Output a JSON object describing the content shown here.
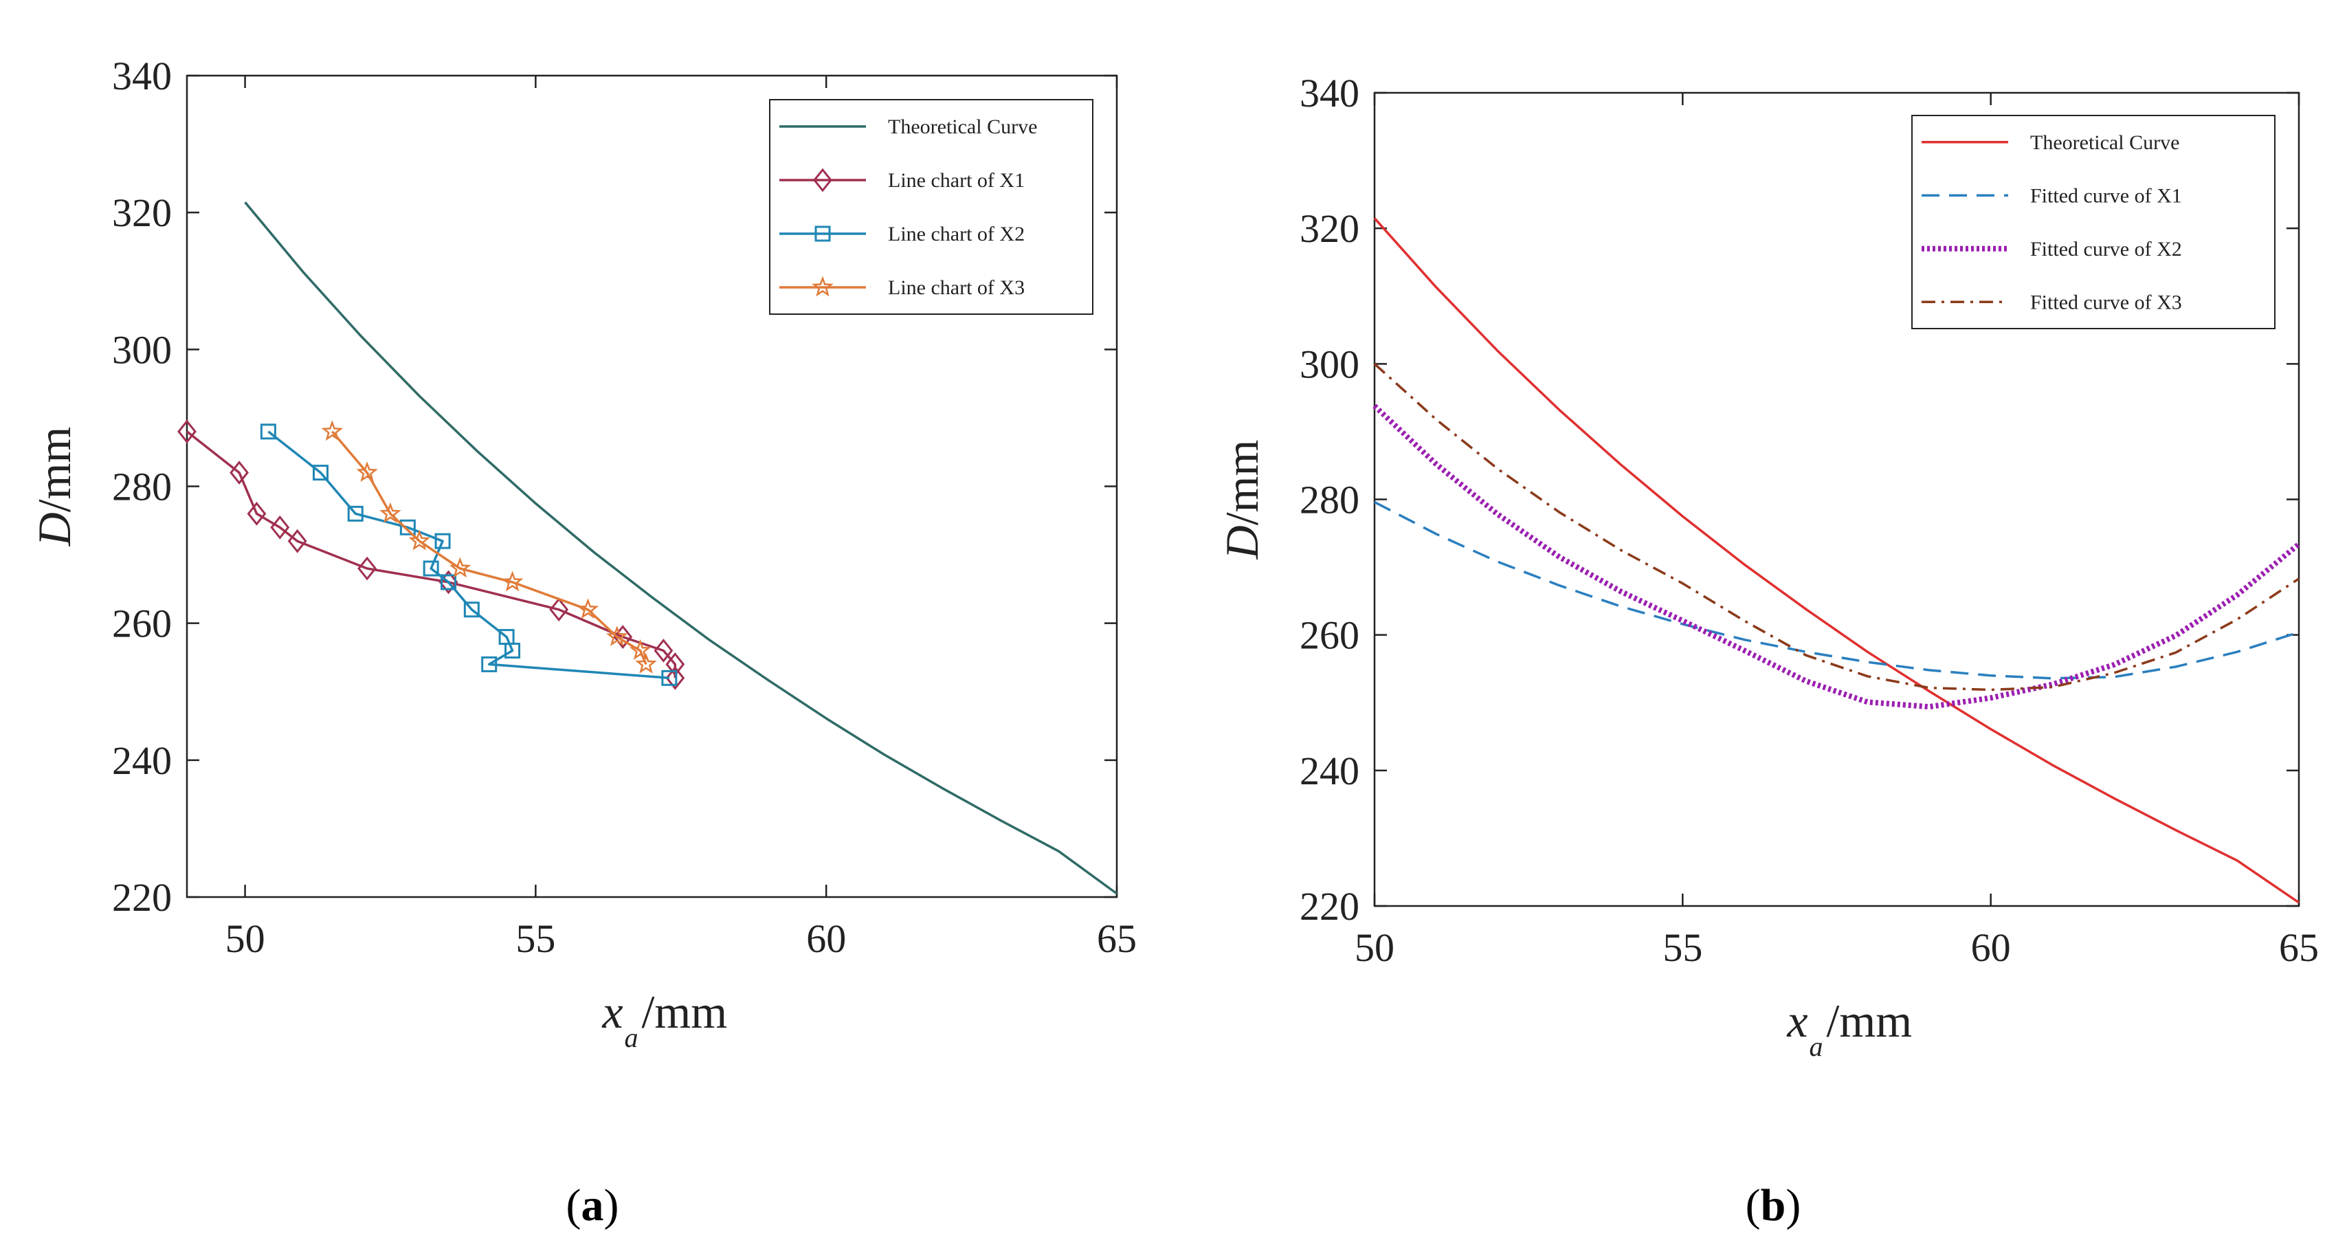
{
  "figure": {
    "panels": [
      {
        "label": "(a)",
        "letter": "a"
      },
      {
        "label": "(b)",
        "letter": "b"
      }
    ]
  },
  "chart_data": [
    {
      "type": "line",
      "panel": "a",
      "xlabel": {
        "main": "x",
        "sub": "a",
        "unit": "/mm"
      },
      "ylabel": {
        "main": "D",
        "unit": "/mm"
      },
      "xlim": [
        49,
        65
      ],
      "ylim": [
        220,
        340
      ],
      "xticks": [
        50,
        55,
        60,
        65
      ],
      "yticks": [
        220,
        240,
        260,
        280,
        300,
        320,
        340
      ],
      "legend_position": "top-right",
      "series": [
        {
          "name": "Theoretical Curve",
          "color": "#2f6b66",
          "style": "solid",
          "marker": "none",
          "x": [
            50,
            51,
            52,
            53,
            54,
            55,
            56,
            57,
            58,
            59,
            60,
            61,
            62,
            63,
            64,
            65
          ],
          "y": [
            321.5,
            311.3,
            301.9,
            293.2,
            285.1,
            277.5,
            270.4,
            263.8,
            257.5,
            251.7,
            246.1,
            240.8,
            235.9,
            231.2,
            226.7,
            220.5
          ]
        },
        {
          "name": "Line chart of X1",
          "color": "#a0304f",
          "style": "solid",
          "marker": "diamond",
          "x": [
            49.0,
            49.9,
            50.2,
            50.6,
            50.9,
            52.1,
            53.5,
            55.4,
            56.5,
            57.2,
            57.4,
            57.4
          ],
          "y": [
            288,
            282,
            276,
            274,
            272,
            268,
            266,
            262,
            258,
            256,
            254,
            252
          ]
        },
        {
          "name": "Line chart of X2",
          "color": "#1f87b5",
          "style": "solid",
          "marker": "square",
          "x": [
            50.4,
            51.3,
            51.9,
            52.8,
            53.4,
            53.2,
            53.5,
            53.9,
            54.5,
            54.6,
            54.2,
            57.3
          ],
          "y": [
            288,
            282,
            276,
            274,
            272,
            268,
            266,
            262,
            258,
            256,
            254,
            252
          ]
        },
        {
          "name": "Line chart of X3",
          "color": "#e07b39",
          "style": "solid",
          "marker": "star",
          "x": [
            51.5,
            52.1,
            52.5,
            53.0,
            53.7,
            54.6,
            55.9,
            56.4,
            56.8,
            56.9
          ],
          "y": [
            288,
            282,
            276,
            272,
            268,
            266,
            262,
            258,
            256,
            254
          ]
        }
      ]
    },
    {
      "type": "line",
      "panel": "b",
      "xlabel": {
        "main": "x",
        "sub": "a",
        "unit": "/mm"
      },
      "ylabel": {
        "main": "D",
        "unit": "/mm"
      },
      "xlim": [
        50,
        65
      ],
      "ylim": [
        220,
        340
      ],
      "xticks": [
        50,
        55,
        60,
        65
      ],
      "yticks": [
        220,
        240,
        260,
        280,
        300,
        320,
        340
      ],
      "legend_position": "top-right",
      "series": [
        {
          "name": "Theoretical Curve",
          "color": "#e03030",
          "style": "solid",
          "x": [
            50,
            51,
            52,
            53,
            54,
            55,
            56,
            57,
            58,
            59,
            60,
            61,
            62,
            63,
            64,
            65
          ],
          "y": [
            321.5,
            311.3,
            301.9,
            293.2,
            285.1,
            277.5,
            270.4,
            263.8,
            257.5,
            251.7,
            246.1,
            240.8,
            235.9,
            231.2,
            226.7,
            220.5
          ]
        },
        {
          "name": "Fitted curve of X1",
          "color": "#2b7fbf",
          "style": "dashed",
          "x": [
            50,
            51,
            52,
            53,
            54,
            55,
            56,
            57,
            58,
            59,
            60,
            61,
            62,
            63,
            64,
            65
          ],
          "y": [
            279.6,
            274.9,
            270.8,
            267.3,
            264.2,
            261.6,
            259.3,
            257.5,
            256.0,
            254.8,
            254.0,
            253.6,
            253.8,
            255.3,
            257.5,
            260.4
          ]
        },
        {
          "name": "Fitted curve of X2",
          "color": "#9b1fb0",
          "style": "dotted",
          "x": [
            50,
            51,
            52,
            53,
            54,
            55,
            56,
            57,
            58,
            59,
            60,
            61,
            62,
            63,
            64,
            65
          ],
          "y": [
            293.8,
            285.2,
            277.8,
            271.5,
            266.4,
            262.1,
            257.7,
            253.2,
            250.1,
            249.4,
            250.7,
            252.7,
            255.6,
            259.9,
            265.9,
            273.4
          ]
        },
        {
          "name": "Fitted curve of X3",
          "color": "#8b3a1a",
          "style": "dashdot",
          "x": [
            50,
            51,
            52,
            53,
            54,
            55,
            56,
            57,
            58,
            59,
            60,
            61,
            62,
            63,
            64,
            65
          ],
          "y": [
            300.0,
            291.8,
            284.5,
            278.1,
            272.5,
            267.6,
            262.1,
            257.0,
            253.9,
            252.2,
            251.9,
            252.3,
            254.4,
            257.4,
            262.3,
            268.3
          ]
        }
      ]
    }
  ]
}
